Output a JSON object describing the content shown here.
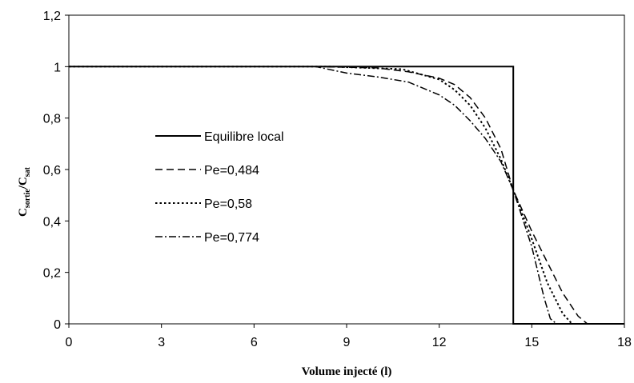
{
  "chart_data": {
    "type": "line",
    "title": "",
    "xlabel": "Volume injecté (l)",
    "ylabel": {
      "main": "C",
      "sub1": "sortie",
      "sep": "/C",
      "sub2": "sat"
    },
    "xlim": [
      0,
      18
    ],
    "ylim": [
      0,
      1.2
    ],
    "x_ticks": [
      0,
      3,
      6,
      9,
      12,
      15,
      18
    ],
    "x_tick_labels": [
      "0",
      "3",
      "6",
      "9",
      "12",
      "15",
      "18"
    ],
    "y_ticks": [
      0,
      0.2,
      0.4,
      0.6,
      0.8,
      1.0,
      1.2
    ],
    "y_tick_labels": [
      "0",
      "0,2",
      "0,4",
      "0,6",
      "0,8",
      "1",
      "1,2"
    ],
    "grid": false,
    "legend_position": "center-left",
    "series": [
      {
        "name": "Equilibre local",
        "style": "solid",
        "points": [
          [
            0,
            1
          ],
          [
            14.4,
            1
          ],
          [
            14.4,
            0
          ],
          [
            18,
            0
          ]
        ]
      },
      {
        "name": "Pe=0,484",
        "style": "dash",
        "points": [
          [
            0,
            1
          ],
          [
            8,
            1
          ],
          [
            10,
            0.995
          ],
          [
            11,
            0.98
          ],
          [
            12,
            0.955
          ],
          [
            12.5,
            0.93
          ],
          [
            13,
            0.88
          ],
          [
            13.5,
            0.8
          ],
          [
            14,
            0.68
          ],
          [
            14.4,
            0.52
          ],
          [
            15,
            0.36
          ],
          [
            15.5,
            0.24
          ],
          [
            16,
            0.12
          ],
          [
            16.5,
            0.03
          ],
          [
            16.8,
            0
          ],
          [
            18,
            0
          ]
        ]
      },
      {
        "name": "Pe=0,58",
        "style": "dot",
        "points": [
          [
            0,
            1
          ],
          [
            8.5,
            1
          ],
          [
            10.8,
            0.99
          ],
          [
            12,
            0.95
          ],
          [
            12.5,
            0.91
          ],
          [
            13,
            0.85
          ],
          [
            13.5,
            0.76
          ],
          [
            14,
            0.64
          ],
          [
            14.4,
            0.52
          ],
          [
            15,
            0.33
          ],
          [
            15.5,
            0.16
          ],
          [
            16,
            0.04
          ],
          [
            16.3,
            0
          ],
          [
            18,
            0
          ]
        ]
      },
      {
        "name": "Pe=0,774",
        "style": "dashdot",
        "points": [
          [
            0,
            1
          ],
          [
            8,
            1
          ],
          [
            9,
            0.975
          ],
          [
            10,
            0.96
          ],
          [
            11,
            0.94
          ],
          [
            12,
            0.89
          ],
          [
            12.5,
            0.85
          ],
          [
            13,
            0.79
          ],
          [
            13.5,
            0.72
          ],
          [
            14,
            0.63
          ],
          [
            14.4,
            0.52
          ],
          [
            15,
            0.3
          ],
          [
            15.4,
            0.1
          ],
          [
            15.6,
            0.02
          ],
          [
            15.8,
            0
          ],
          [
            18,
            0
          ]
        ]
      }
    ]
  }
}
